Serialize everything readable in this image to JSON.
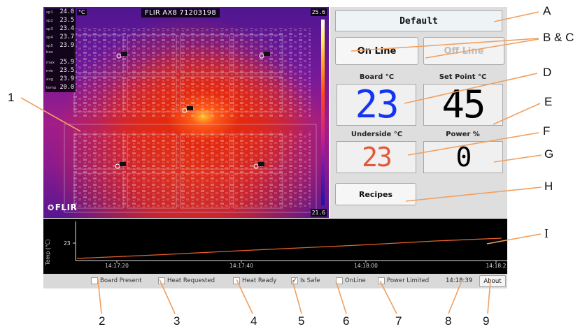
{
  "thermal": {
    "title": "FLIR AX8 71203198",
    "unit": "°C",
    "scale_max": "25.6",
    "scale_min": "21.6",
    "logo_text": "FLIR",
    "spots": [
      {
        "label": "sp1",
        "value": "24.0"
      },
      {
        "label": "sp2",
        "value": "23.5"
      },
      {
        "label": "sp3",
        "value": "23.4"
      },
      {
        "label": "sp4",
        "value": "23.7"
      },
      {
        "label": "sp5",
        "value": "23.9"
      }
    ],
    "box_title": "box",
    "box_stats": [
      {
        "label": "max",
        "value": "25.9"
      },
      {
        "label": "min",
        "value": "23.5"
      },
      {
        "label": "avg",
        "value": "23.9"
      },
      {
        "label": "temp",
        "value": "20.0"
      }
    ]
  },
  "panel": {
    "profile_name": "Default",
    "online_label": "On Line",
    "offline_label": "Off Line",
    "board_caption": "Board °C",
    "setpoint_caption": "Set Point °C",
    "board_value": "23",
    "setpoint_value": "45",
    "underside_caption": "Underside °C",
    "power_caption": "Power %",
    "underside_value": "23",
    "power_value": "0",
    "recipes_label": "Recipes",
    "colors": {
      "board": "#1433f5",
      "underside": "#e35a3a",
      "setpoint": "#000000"
    }
  },
  "trend": {
    "ylabel": "Temp (°C)",
    "ytick": "23",
    "xticks": [
      "14:17:20",
      "14:17:40",
      "14:18:00",
      "14:18:2"
    ],
    "line_color": "#e8602a"
  },
  "status": {
    "board_present": {
      "label": "Board Present",
      "checked": false
    },
    "heat_requested": {
      "label": "Heat Requested",
      "checked": false
    },
    "heat_ready": {
      "label": "Heat Ready",
      "checked": false
    },
    "is_safe": {
      "label": "Is Safe",
      "checked": true,
      "mark": "✓"
    },
    "online": {
      "label": "OnLine",
      "checked": false
    },
    "power_limited": {
      "label": "Power Limited",
      "checked": false
    },
    "clock": "14:18:39",
    "about_label": "About"
  },
  "callouts": {
    "a": "A",
    "bc": "B & C",
    "d": "D",
    "e": "E",
    "f": "F",
    "g": "G",
    "h": "H",
    "i": "I",
    "n1": "1",
    "n2": "2",
    "n3": "3",
    "n4": "4",
    "n5": "5",
    "n6": "6",
    "n7": "7",
    "n8": "8",
    "n9": "9"
  }
}
